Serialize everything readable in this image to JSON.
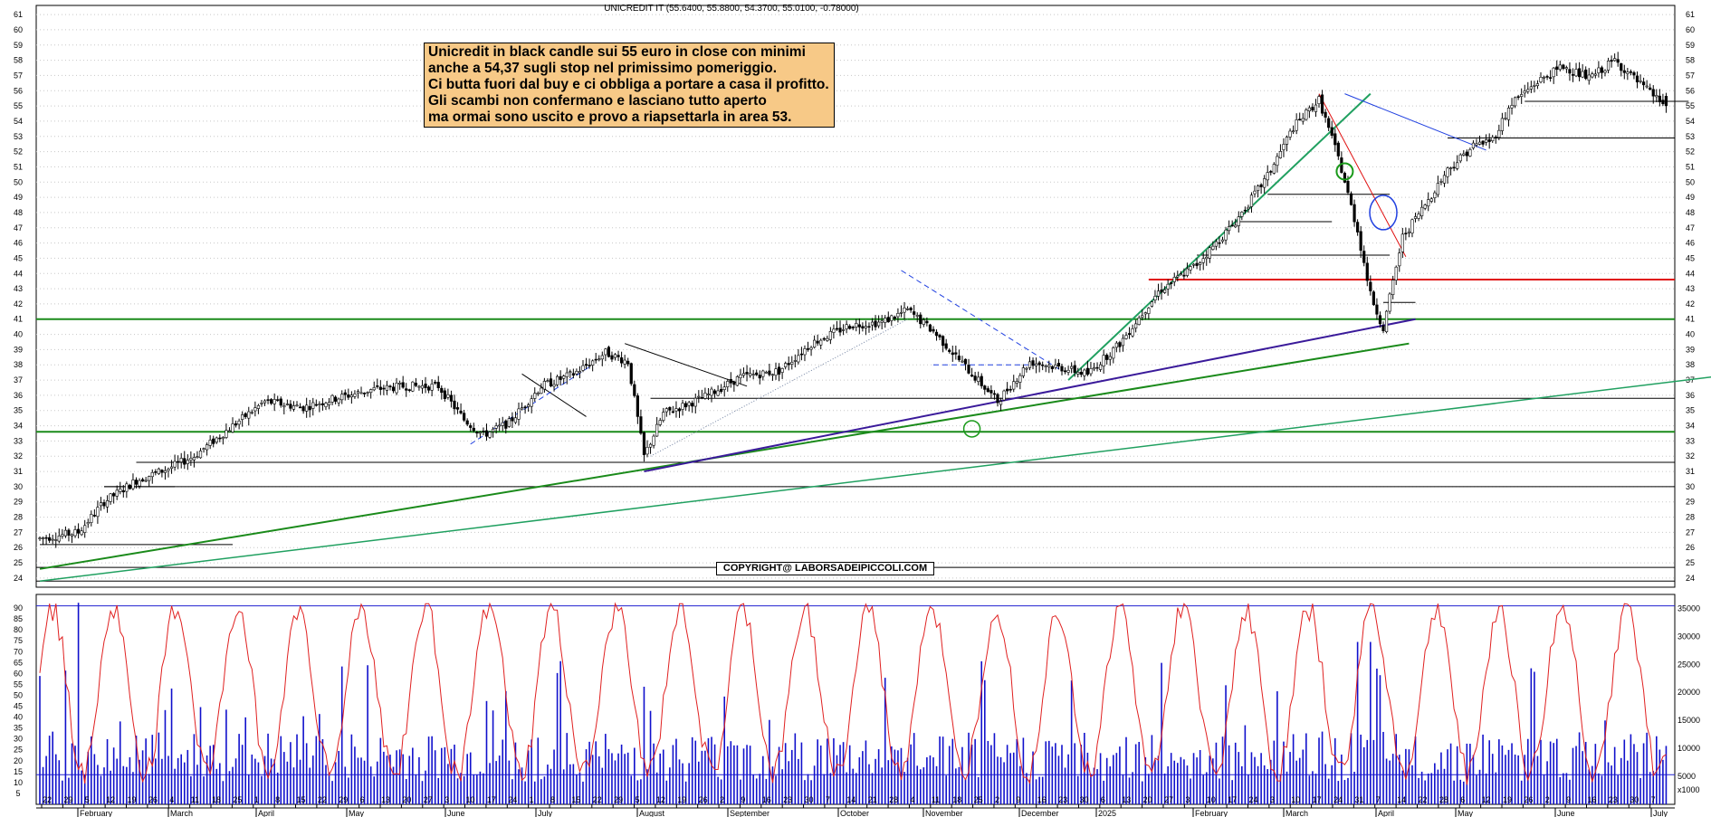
{
  "header": {
    "title": "UNICREDIT IT (55.6400, 55.8800, 54.3700, 55.0100, -0.78000)"
  },
  "annotation": {
    "lines": [
      "Unicredit in black candle sui 55 euro in close con minimi",
      "anche a 54,37 sugli stop nel primissimo pomeriggio.",
      "Ci butta fuori dal buy e ci obbliga a portare a casa il profitto.",
      "Gli scambi non confermano e lasciano tutto aperto",
      "ma ormai sono uscito e provo a riapsettarla in area 53."
    ]
  },
  "copyright": "COPYRIGHT@ LABORSADEIPICCOLI.COM",
  "colors": {
    "candle_up": "#ffffff",
    "candle_down": "#000000",
    "oscillator": "#e02020",
    "volume": "#1010cc",
    "support_green": "#1a8a1a",
    "resistance_red": "#e01010",
    "trend_purple": "#3a1a9a",
    "trend_teal": "#20a060",
    "dashed_blue": "#2040e0",
    "annotation_bg": "#f7c987"
  },
  "chart_data": [
    {
      "type": "candlestick",
      "title": "UNICREDIT IT (55.6400, 55.8800, 54.3700, 55.0100, -0.78000)",
      "ylim": [
        23.4,
        61.6
      ],
      "yticks": [
        24,
        25,
        26,
        27,
        28,
        29,
        30,
        31,
        32,
        33,
        34,
        35,
        36,
        37,
        38,
        39,
        40,
        41,
        42,
        43,
        44,
        45,
        46,
        47,
        48,
        49,
        50,
        51,
        52,
        53,
        54,
        55,
        56,
        57,
        58,
        59,
        60,
        61
      ],
      "last_bar": {
        "open": 55.64,
        "high": 55.88,
        "low": 54.37,
        "close": 55.01,
        "change": -0.78
      },
      "anchors": [
        [
          0,
          26.6
        ],
        [
          12,
          27.0
        ],
        [
          20,
          29.0
        ],
        [
          30,
          30.4
        ],
        [
          40,
          31.2
        ],
        [
          48,
          32.0
        ],
        [
          60,
          34.0
        ],
        [
          70,
          35.6
        ],
        [
          82,
          35.2
        ],
        [
          92,
          35.8
        ],
        [
          104,
          36.4
        ],
        [
          114,
          36.6
        ],
        [
          124,
          36.6
        ],
        [
          132,
          34.4
        ],
        [
          138,
          33.4
        ],
        [
          146,
          34.2
        ],
        [
          156,
          36.6
        ],
        [
          166,
          37.4
        ],
        [
          176,
          38.8
        ],
        [
          183,
          38.2
        ],
        [
          188,
          32.0
        ],
        [
          194,
          34.8
        ],
        [
          206,
          35.8
        ],
        [
          218,
          37.2
        ],
        [
          230,
          37.6
        ],
        [
          240,
          39.4
        ],
        [
          252,
          40.6
        ],
        [
          262,
          40.8
        ],
        [
          270,
          41.6
        ],
        [
          278,
          40.2
        ],
        [
          290,
          37.4
        ],
        [
          298,
          35.6
        ],
        [
          308,
          38.2
        ],
        [
          318,
          37.8
        ],
        [
          326,
          37.4
        ],
        [
          336,
          39.4
        ],
        [
          348,
          42.8
        ],
        [
          360,
          44.6
        ],
        [
          372,
          47.4
        ],
        [
          382,
          50.4
        ],
        [
          390,
          53.6
        ],
        [
          398,
          55.4
        ],
        [
          404,
          51.6
        ],
        [
          410,
          46.8
        ],
        [
          414,
          42.6
        ],
        [
          418,
          40.4
        ],
        [
          424,
          46.4
        ],
        [
          430,
          48.2
        ],
        [
          438,
          50.8
        ],
        [
          446,
          52.4
        ],
        [
          452,
          52.8
        ],
        [
          458,
          55.2
        ],
        [
          466,
          56.6
        ],
        [
          474,
          57.6
        ],
        [
          482,
          56.8
        ],
        [
          490,
          58.0
        ],
        [
          498,
          56.4
        ],
        [
          506,
          55.01
        ]
      ],
      "horizontal_levels": [
        {
          "value": 43.6,
          "color": "red"
        },
        {
          "value": 41.0,
          "color": "green"
        },
        {
          "value": 33.6,
          "color": "green"
        },
        {
          "value": 52.9,
          "color": "black"
        },
        {
          "value": 55.3,
          "color": "black"
        },
        {
          "value": 35.8,
          "color": "black"
        },
        {
          "value": 31.6,
          "color": "black"
        },
        {
          "value": 30.0,
          "color": "black"
        },
        {
          "value": 24.7,
          "color": "black"
        },
        {
          "value": 23.8,
          "color": "black"
        }
      ]
    },
    {
      "type": "line",
      "name": "oscillator",
      "ylim": [
        0,
        95
      ],
      "yticks": [
        5,
        10,
        15,
        20,
        25,
        30,
        35,
        40,
        45,
        50,
        55,
        60,
        65,
        70,
        75,
        80,
        85,
        90
      ],
      "reference_level": 91
    },
    {
      "type": "bar",
      "name": "volume",
      "ylim": [
        0,
        37000
      ],
      "yticks": [
        5000,
        10000,
        15000,
        20000,
        25000,
        30000,
        35000
      ],
      "unit_label": "x1000",
      "reference_levels": [
        31500,
        5300
      ]
    }
  ],
  "x_axis": {
    "day_labels": [
      "22",
      "29",
      "5",
      "12",
      "19",
      "26",
      "4",
      "11",
      "18",
      "25",
      "1",
      "8",
      "15",
      "22",
      "29",
      "6",
      "13",
      "20",
      "27",
      "3",
      "10",
      "17",
      "24",
      "1",
      "8",
      "15",
      "22",
      "29",
      "5",
      "12",
      "19",
      "26",
      "2",
      "9",
      "16",
      "23",
      "30",
      "7",
      "14",
      "21",
      "28",
      "4",
      "11",
      "18",
      "25",
      "2",
      "9",
      "16",
      "23",
      "30",
      "6",
      "13",
      "20",
      "27",
      "3",
      "10",
      "17",
      "24",
      "3",
      "10",
      "17",
      "24",
      "31",
      "7",
      "14",
      "22",
      "28",
      "6",
      "12",
      "19",
      "26",
      "2",
      "9",
      "16",
      "23",
      "30",
      "7"
    ],
    "month_labels": [
      "February",
      "March",
      "April",
      "May",
      "June",
      "July",
      "August",
      "September",
      "October",
      "November",
      "December",
      "2025",
      "February",
      "March",
      "April",
      "May",
      "June",
      "July"
    ]
  }
}
